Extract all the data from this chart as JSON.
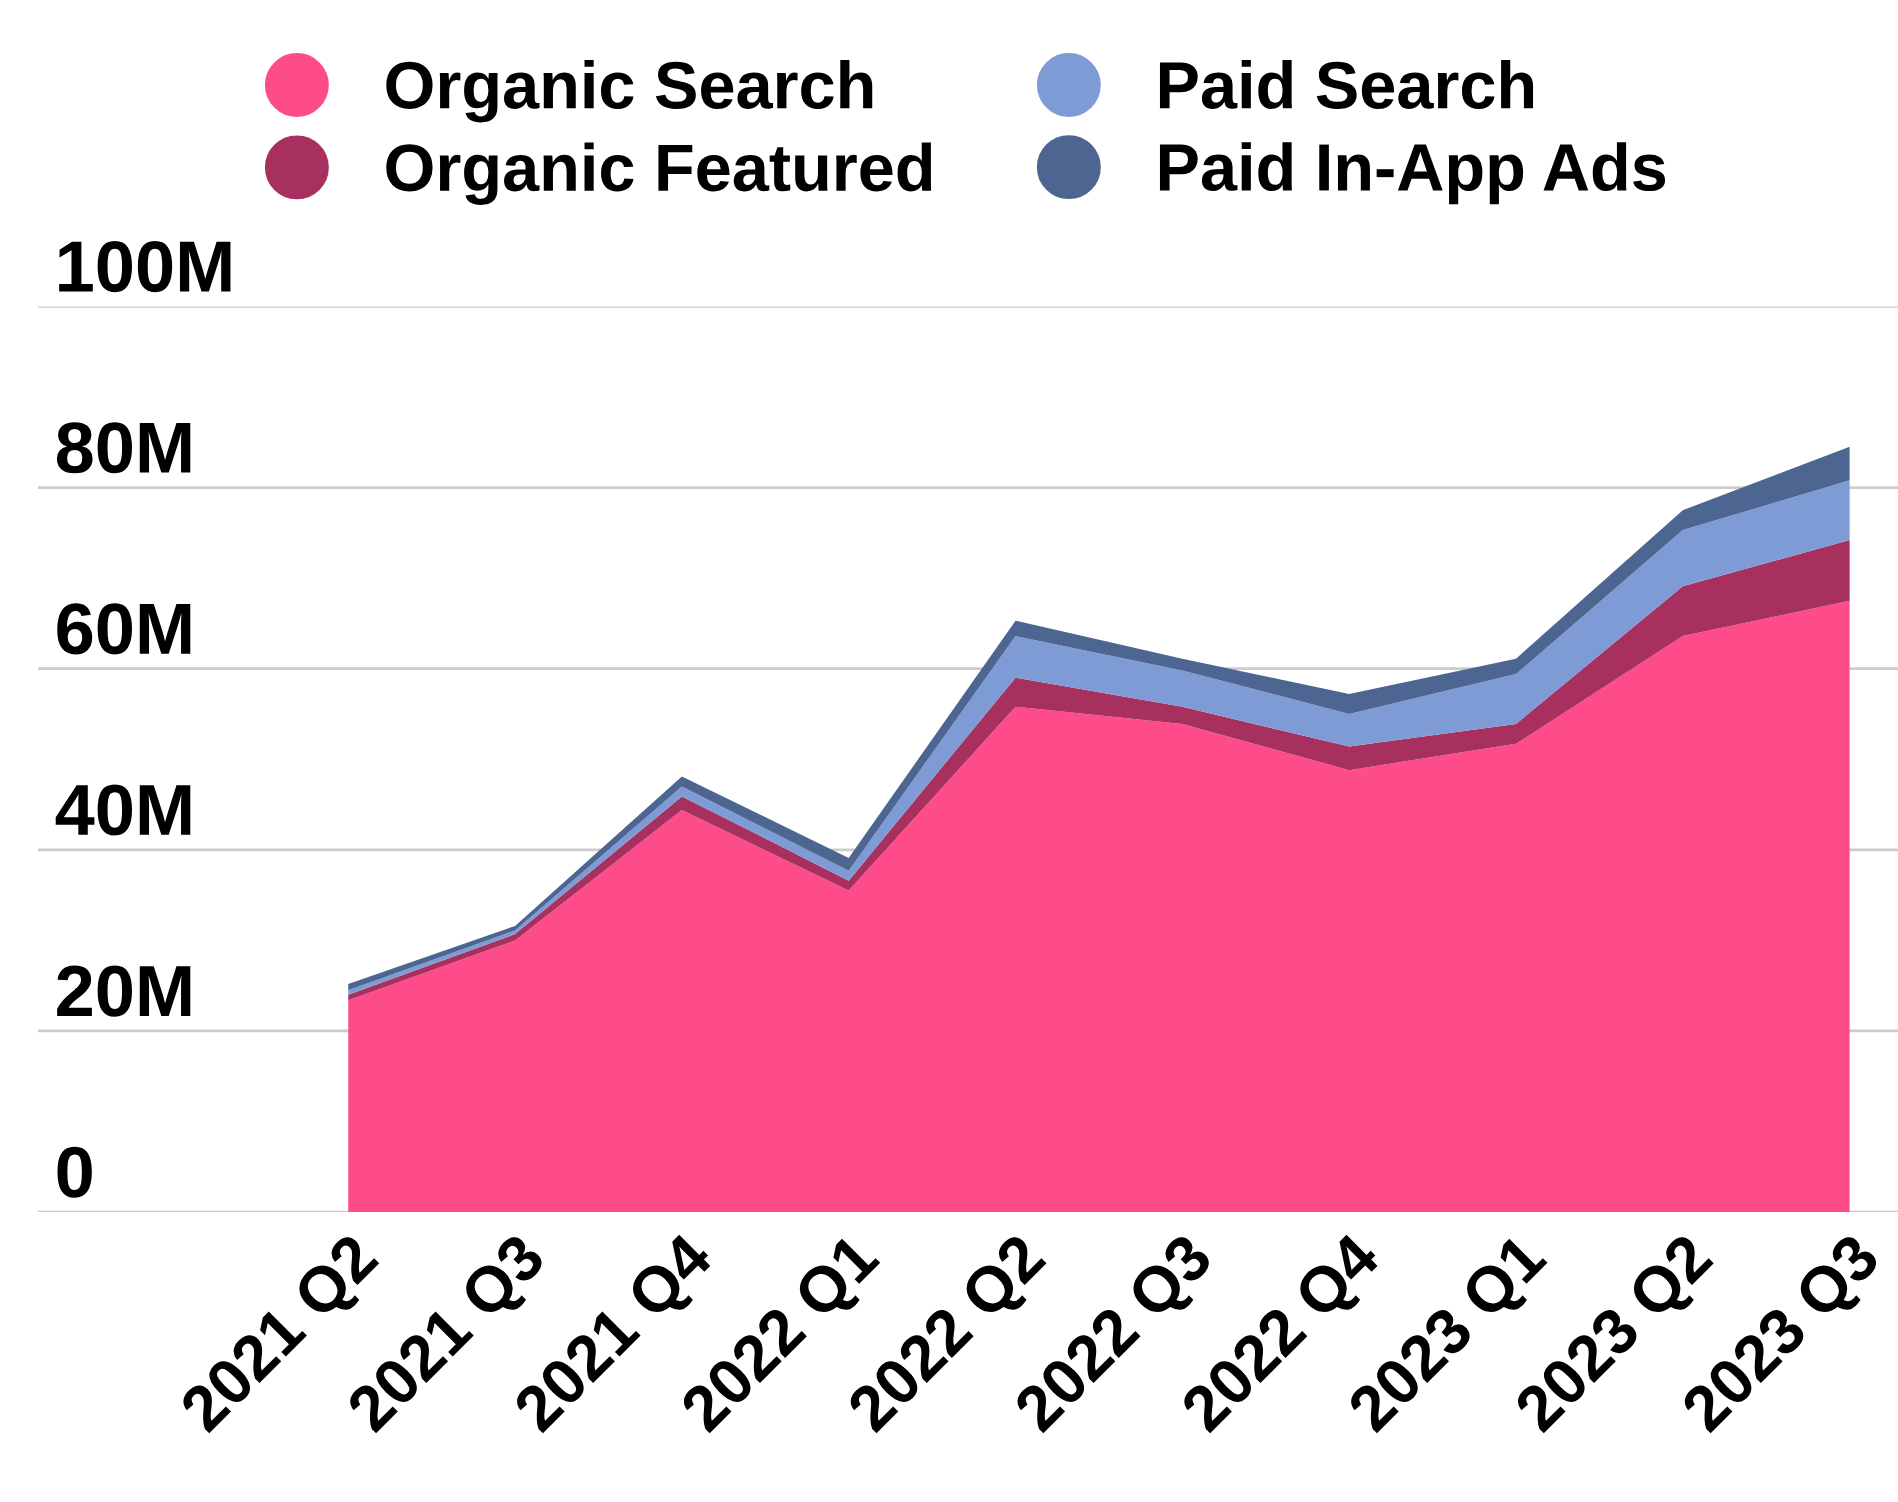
{
  "chart_data": {
    "type": "area",
    "stacked": true,
    "categories": [
      "2021 Q2",
      "2021 Q3",
      "2021 Q4",
      "2022 Q1",
      "2022 Q2",
      "2022 Q3",
      "2022 Q4",
      "2023 Q1",
      "2023 Q2",
      "2023 Q3"
    ],
    "series": [
      {
        "name": "Organic Search",
        "color": "#fe4b8a",
        "values": [
          23.4,
          30,
          44.4,
          35.5,
          55.8,
          53.9,
          48.8,
          51.7,
          63.6,
          67.5
        ]
      },
      {
        "name": "Organic Featured",
        "color": "#a8305e",
        "values": [
          0.6,
          0.7,
          1.5,
          1.1,
          3.2,
          1.9,
          2.6,
          2.2,
          5.5,
          6.7
        ]
      },
      {
        "name": "Paid Search",
        "color": "#7f9bd6",
        "values": [
          0.5,
          0.4,
          1.1,
          1.1,
          4.6,
          4,
          3.6,
          5.5,
          6.2,
          6.6
        ]
      },
      {
        "name": "Paid In-App Ads",
        "color": "#4d6591",
        "values": [
          0.7,
          0.5,
          1.1,
          1.4,
          1.7,
          1.3,
          2.2,
          1.7,
          2.2,
          3.7
        ]
      }
    ],
    "ylim": [
      0,
      100
    ],
    "yticks": [
      0,
      {
        "value": 20,
        "label": "20M"
      },
      {
        "value": 40,
        "label": "40M"
      },
      {
        "value": 60,
        "label": "60M"
      },
      {
        "value": 80,
        "label": "80M"
      },
      {
        "value": 100,
        "label": "100M"
      }
    ],
    "grid": "y",
    "legend": "top"
  }
}
